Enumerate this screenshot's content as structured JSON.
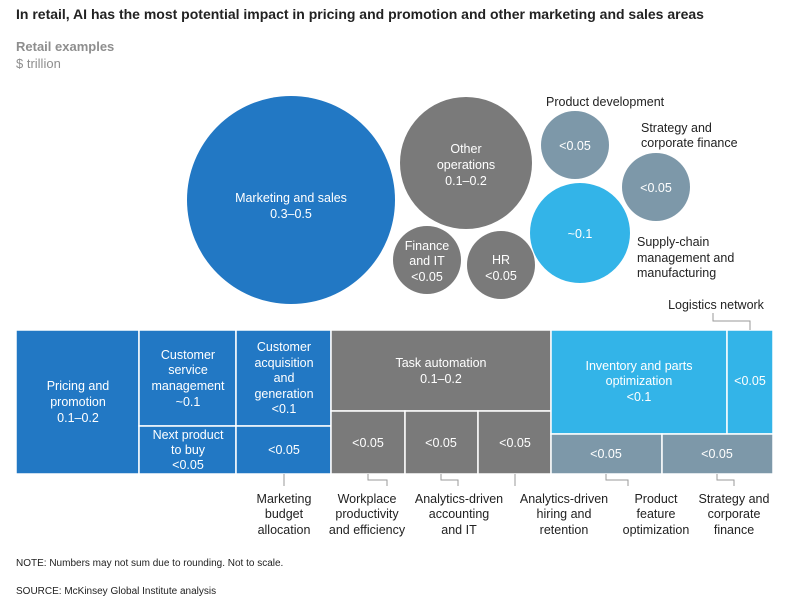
{
  "colors": {
    "blue_dark": "#2278c4",
    "blue_light": "#33b4e8",
    "gray_dark": "#7a7a7a",
    "gray_blue": "#7d98a9",
    "leader": "#9a9a9a"
  },
  "title": "In retail, AI has the most potential impact in pricing and promotion and other marketing and sales areas",
  "subtitle": "Retail examples",
  "unit": "$ trillion",
  "chart_data": [
    {
      "type": "bubble",
      "bubbles": [
        {
          "label": "Marketing and sales",
          "value": "0.3–0.5",
          "color": "blue_dark"
        },
        {
          "label": "Other operations",
          "value": "0.1–0.2",
          "color": "gray_dark"
        },
        {
          "label": "Finance and IT",
          "value": "<0.05",
          "color": "gray_dark"
        },
        {
          "label": "HR",
          "value": "<0.05",
          "color": "gray_dark"
        },
        {
          "label": "Product development",
          "value": "<0.05",
          "color": "gray_blue"
        },
        {
          "label": "Strategy and corporate finance",
          "value": "<0.05",
          "color": "gray_blue"
        },
        {
          "label": "Supply-chain management and manufacturing",
          "value": "~0.1",
          "color": "blue_light"
        }
      ]
    },
    {
      "type": "treemap",
      "groups": [
        {
          "function": "Marketing and sales",
          "color": "blue_dark",
          "cells": [
            {
              "label": "Pricing and promotion",
              "value": "0.1–0.2"
            },
            {
              "label": "Customer service management",
              "value": "~0.1"
            },
            {
              "label": "Next product to buy",
              "value": "<0.05"
            },
            {
              "label": "Customer acquisition and generation",
              "value": "<0.1"
            },
            {
              "label": "Marketing budget allocation",
              "value": "<0.05"
            }
          ]
        },
        {
          "function": "Other operations",
          "color": "gray_dark",
          "cells": [
            {
              "label": "Task automation",
              "value": "0.1–0.2"
            },
            {
              "label": "Workplace productivity and efficiency",
              "value": "<0.05"
            },
            {
              "label": "Analytics-driven accounting and IT",
              "value": "<0.05"
            },
            {
              "label": "Analytics-driven hiring and retention",
              "value": "<0.05"
            }
          ]
        },
        {
          "function": "Supply-chain management and manufacturing",
          "color": "blue_light",
          "cells": [
            {
              "label": "Inventory and parts optimization",
              "value": "<0.1"
            },
            {
              "label": "Logistics network",
              "value": "<0.05"
            }
          ]
        },
        {
          "function": "Product development / Strategy",
          "color": "gray_blue",
          "cells": [
            {
              "label": "Product feature optimization",
              "value": "<0.05"
            },
            {
              "label": "Strategy and corporate finance",
              "value": "<0.05"
            }
          ]
        }
      ]
    }
  ],
  "bubble_text": {
    "mkt_l1": "Marketing and sales",
    "mkt_v": "0.3–0.5",
    "oth_l1": "Other",
    "oth_l2": "operations",
    "oth_v": "0.1–0.2",
    "fin_l1": "Finance",
    "fin_l2": "and IT",
    "fin_v": "<0.05",
    "hr_l1": "HR",
    "hr_v": "<0.05",
    "pd_v": "<0.05",
    "pd_label": "Product development",
    "st_v": "<0.05",
    "st_l1": "Strategy and",
    "st_l2": "corporate finance",
    "sc_v": "~0.1",
    "sc_l1": "Supply-chain",
    "sc_l2": "management and",
    "sc_l3": "manufacturing"
  },
  "tree_text": {
    "pp_l1": "Pricing and",
    "pp_l2": "promotion",
    "pp_v": "0.1–0.2",
    "cs_l1": "Customer",
    "cs_l2": "service",
    "cs_l3": "management",
    "cs_v": "~0.1",
    "ca_l1": "Customer",
    "ca_l2": "acquisition",
    "ca_l3": "and",
    "ca_l4": "generation",
    "ca_v": "<0.1",
    "np_l1": "Next product",
    "np_l2": "to buy",
    "np_v": "<0.05",
    "mb_v": "<0.05",
    "ta_l1": "Task automation",
    "ta_v": "0.1–0.2",
    "wp_v": "<0.05",
    "ac_v": "<0.05",
    "hi_v": "<0.05",
    "inv_l1": "Inventory and parts",
    "inv_l2": "optimization",
    "inv_v": "<0.1",
    "ln_v": "<0.05",
    "pf_v": "<0.05",
    "sf_v": "<0.05"
  },
  "callouts": {
    "logistics": "Logistics network",
    "mb_l1": "Marketing",
    "mb_l2": "budget",
    "mb_l3": "allocation",
    "wp_l1": "Workplace",
    "wp_l2": "productivity",
    "wp_l3": "and efficiency",
    "ac_l1": "Analytics-driven",
    "ac_l2": "accounting",
    "ac_l3": "and IT",
    "hi_l1": "Analytics-driven",
    "hi_l2": "hiring and",
    "hi_l3": "retention",
    "pf_l1": "Product",
    "pf_l2": "feature",
    "pf_l3": "optimization",
    "sf_l1": "Strategy and",
    "sf_l2": "corporate",
    "sf_l3": "finance"
  },
  "note": "NOTE: Numbers may not sum due to rounding. Not to scale.",
  "source": "SOURCE:  McKinsey Global Institute analysis"
}
